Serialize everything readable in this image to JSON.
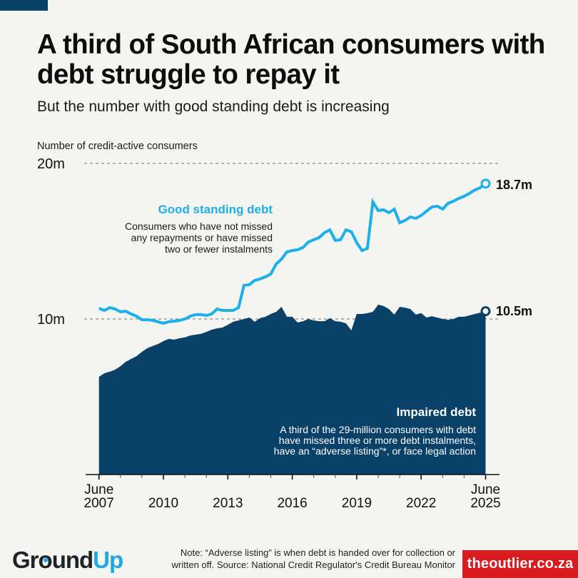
{
  "header": {
    "title": "A third of South African consumers with debt struggle to repay it",
    "subtitle": "But the number with good standing debt is increasing"
  },
  "colors": {
    "good_standing": "#1cb0ea",
    "impaired": "#0a4168",
    "background": "#f4f4f0",
    "brand_red": "#da1b1f",
    "brand_blue": "#1ca9e6"
  },
  "chart_data": {
    "type": "area",
    "title": "A third of South African consumers with debt struggle to repay it",
    "subtitle": "But the number with good standing debt is increasing",
    "ylabel": "Number of credit-active consumers",
    "xlabel": "",
    "ylim": [
      0,
      20
    ],
    "y_unit": "million",
    "y_ticks": [
      {
        "value": 10,
        "label": "10m"
      },
      {
        "value": 20,
        "label": "20m"
      }
    ],
    "x_range": [
      "June 2007",
      "June 2025"
    ],
    "x_start_year": 2007.5,
    "x_end_year": 2025.5,
    "x_frequency": "quarterly",
    "x_ticks": [
      {
        "year": 2007.5,
        "label_top": "June",
        "label_bottom": "2007",
        "major": true
      },
      {
        "year": 2010.5,
        "label_top": "",
        "label_bottom": "2010",
        "major": true
      },
      {
        "year": 2013.5,
        "label_top": "",
        "label_bottom": "2013",
        "major": true
      },
      {
        "year": 2016.5,
        "label_top": "",
        "label_bottom": "2016",
        "major": true
      },
      {
        "year": 2019.5,
        "label_top": "",
        "label_bottom": "2019",
        "major": true
      },
      {
        "year": 2022.5,
        "label_top": "",
        "label_bottom": "2022",
        "major": true
      },
      {
        "year": 2025.5,
        "label_top": "June",
        "label_bottom": "2025",
        "major": true
      }
    ],
    "grid": true,
    "series": [
      {
        "name": "Good standing debt",
        "type": "line",
        "description": [
          "Consumers who have not missed",
          "any repayments or have missed",
          "two or fewer instalments"
        ],
        "end_label": "18.7m",
        "values": [
          10.69,
          10.55,
          10.73,
          10.64,
          10.46,
          10.5,
          10.32,
          10.18,
          9.95,
          9.95,
          9.91,
          9.82,
          9.72,
          9.82,
          9.86,
          9.91,
          10.0,
          10.18,
          10.28,
          10.28,
          10.23,
          10.32,
          10.64,
          10.55,
          10.55,
          10.55,
          10.73,
          12.16,
          12.2,
          12.48,
          12.57,
          12.71,
          12.89,
          13.53,
          13.85,
          14.31,
          14.4,
          14.45,
          14.59,
          14.95,
          15.09,
          15.23,
          15.55,
          15.73,
          15.05,
          15.09,
          15.73,
          15.6,
          14.91,
          14.4,
          14.54,
          17.52,
          16.97,
          17.02,
          16.83,
          17.06,
          16.19,
          16.33,
          16.56,
          16.47,
          16.65,
          16.93,
          17.2,
          17.25,
          17.06,
          17.43,
          17.57,
          17.75,
          17.89,
          18.07,
          18.3,
          18.44,
          18.7
        ]
      },
      {
        "name": "Impaired debt",
        "type": "area",
        "description": [
          "A third of the 29-million consumers with debt",
          "have missed three or more debt instalments,",
          "have an “adverse listing”*, or face legal action"
        ],
        "end_label": "10.5m",
        "values": [
          6.28,
          6.51,
          6.61,
          6.74,
          6.97,
          7.25,
          7.43,
          7.61,
          7.89,
          8.12,
          8.26,
          8.39,
          8.58,
          8.72,
          8.67,
          8.76,
          8.81,
          8.94,
          8.99,
          9.04,
          9.17,
          9.31,
          9.4,
          9.45,
          9.63,
          9.82,
          9.91,
          10.0,
          10.09,
          9.82,
          10.05,
          10.14,
          10.32,
          10.46,
          10.78,
          10.14,
          10.14,
          9.77,
          9.86,
          10.0,
          9.91,
          9.86,
          9.86,
          10.05,
          9.86,
          9.82,
          9.72,
          9.27,
          10.32,
          10.32,
          10.37,
          10.46,
          10.92,
          10.83,
          10.64,
          10.28,
          10.78,
          10.73,
          10.64,
          10.28,
          10.37,
          10.09,
          10.18,
          10.09,
          10.0,
          9.95,
          10.0,
          10.14,
          10.14,
          10.23,
          10.32,
          10.41,
          10.5
        ]
      }
    ]
  },
  "footer": {
    "note_lines": [
      "Note: “Adverse listing” is when debt is handed over for collection or",
      "written off. Source: National Credit Regulator's Credit Bureau Monitor"
    ],
    "logo_left_part1": "Gr",
    "logo_left_o": "o",
    "logo_left_part2": "und",
    "logo_left_part3": "Up",
    "logo_right": "theoutlier.co.za"
  }
}
